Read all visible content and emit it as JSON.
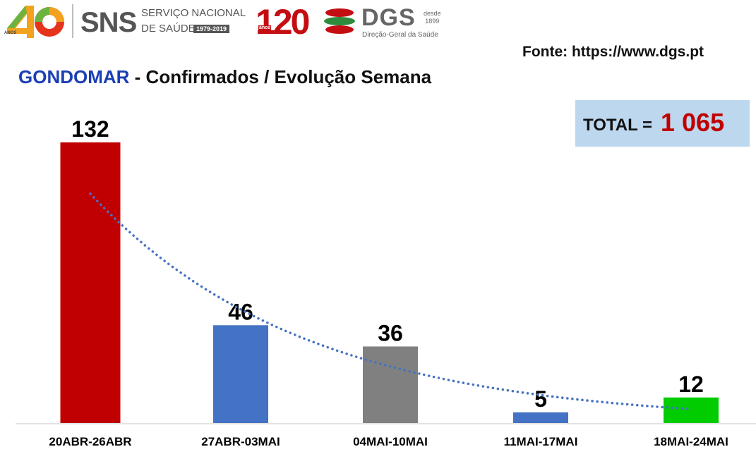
{
  "logos": {
    "sns": {
      "badge_number": "40",
      "badge_word": "ANOS",
      "name": "SNS",
      "line1": "SERVIÇO NACIONAL",
      "line2": "DE SAÚDE",
      "years": "1979-2019"
    },
    "dgs": {
      "badge_number": "120",
      "badge_word": "anos",
      "name": "DGS",
      "since_label": "desde",
      "since_year": "1899",
      "subtitle": "Direção-Geral da Saúde"
    }
  },
  "source": "Fonte: https://www.dgs.pt",
  "header": {
    "title_highlight": "GONDOMAR",
    "title_rest": " - Confirmados / Evolução Semana"
  },
  "total": {
    "label": "TOTAL =",
    "value": "1 065"
  },
  "colors": {
    "title_highlight": "#1b3fb4",
    "total_value": "#c00000",
    "total_box": "#bdd7ee",
    "trendline": "#4472c4"
  },
  "chart_data": {
    "type": "bar",
    "title": "GONDOMAR - Confirmados / Evolução Semana",
    "categories": [
      "20ABR-26ABR",
      "27ABR-03MAI",
      "04MAI-10MAI",
      "11MAI-17MAI",
      "18MAI-24MAI"
    ],
    "values": [
      132,
      46,
      36,
      5,
      12
    ],
    "bar_colors": [
      "#c00000",
      "#4472c4",
      "#808080",
      "#4472c4",
      "#00cc00"
    ],
    "data_labels": true,
    "trendline": "dotted",
    "ylim": [
      0,
      132
    ],
    "grid": false,
    "xlabel": "",
    "ylabel": ""
  }
}
